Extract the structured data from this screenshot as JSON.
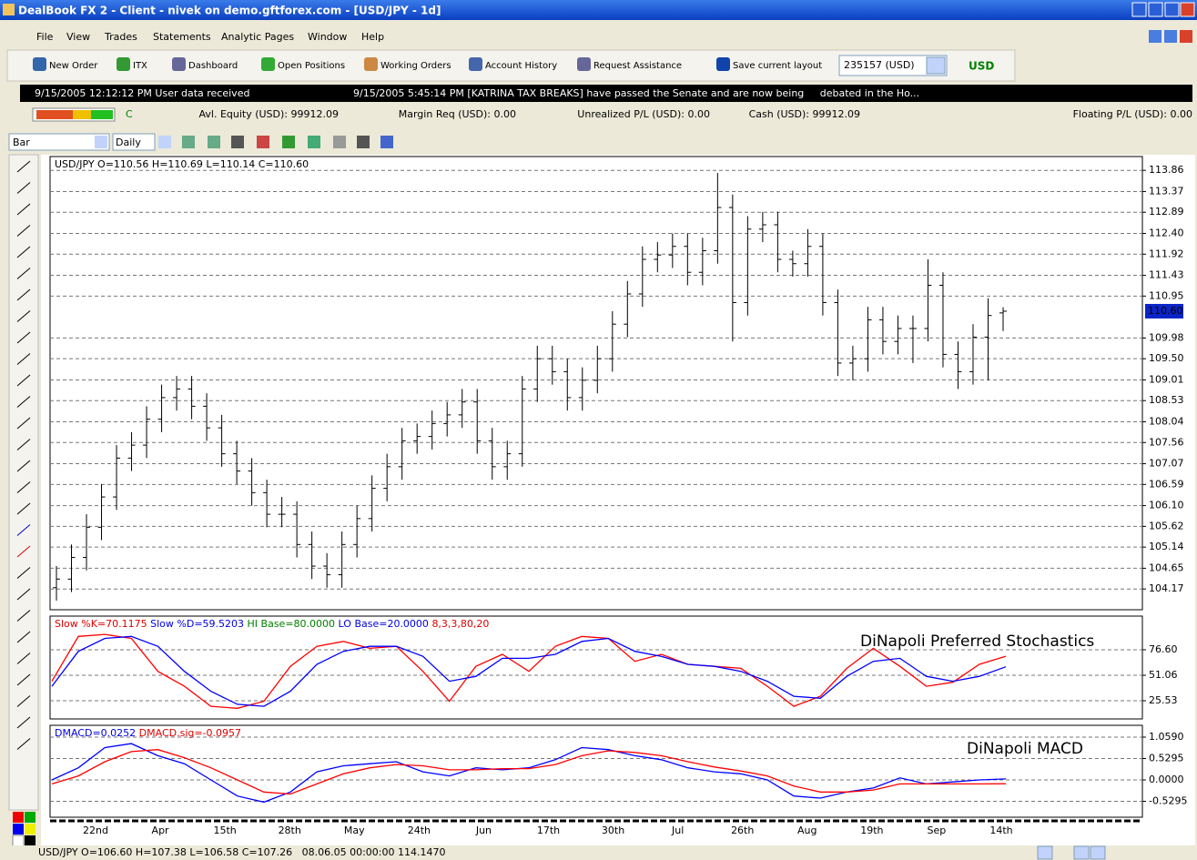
{
  "window": {
    "title": "DealBook FX 2 - Client - nivek on demo.gftforex.com - [USD/JPY - 1d]",
    "menu": [
      "File",
      "View",
      "Trades",
      "Statements",
      "Analytic Pages",
      "Window",
      "Help"
    ]
  },
  "toolbar": {
    "buttons": [
      "New Order",
      "ITX",
      "Dashboard",
      "Open Positions",
      "Working Orders",
      "Account History",
      "Request Assistance",
      "Save current layout"
    ],
    "account": "235157 (USD)",
    "currency": "USD"
  },
  "news": [
    "9/15/2005 12:12:12 PM User data received",
    "9/15/2005 5:45:14 PM [KATRINA TAX BREAKS] have passed the Senate and are now being     debated in the Ho..."
  ],
  "status": {
    "indicator": "C",
    "fields": [
      "Avl. Equity (USD): 99912.09",
      "Margin Req (USD): 0.00",
      "Unrealized P/L (USD): 0.00",
      "Cash (USD): 99912.09",
      "Floating P/L (USD): 0.00"
    ]
  },
  "chart_toolbar": {
    "style": "Bar",
    "period": "Daily"
  },
  "price_chart": {
    "type": "ohlc",
    "header": "USD/JPY O=110.56 H=110.69 L=110.14 C=110.60",
    "grid": true,
    "ylim": [
      103.69,
      114.18
    ],
    "yticks": [
      113.86,
      113.37,
      112.89,
      {
        "value": 112.4,
        "label": "112.40"
      },
      111.92,
      111.43,
      110.95,
      109.98,
      {
        "value": 109.5,
        "label": "109.50"
      },
      109.01,
      108.53,
      108.04,
      107.56,
      107.07,
      106.59,
      {
        "value": 106.1,
        "label": "106.10"
      },
      105.62,
      105.14,
      104.65,
      104.17
    ],
    "last": {
      "value": 110.6,
      "label": "110.60"
    },
    "bars": [
      [
        104.2,
        104.7,
        103.9,
        104.4
      ],
      [
        104.4,
        105.2,
        104.1,
        104.9
      ],
      [
        104.9,
        105.9,
        104.6,
        105.6
      ],
      [
        105.6,
        106.6,
        105.3,
        106.3
      ],
      [
        106.3,
        107.5,
        106.0,
        107.2
      ],
      [
        107.2,
        107.8,
        106.9,
        107.5
      ],
      [
        107.5,
        108.4,
        107.2,
        108.1
      ],
      [
        108.1,
        108.9,
        107.8,
        108.6
      ],
      [
        108.6,
        109.1,
        108.3,
        108.8
      ],
      [
        108.8,
        109.1,
        108.1,
        108.4
      ],
      [
        108.4,
        108.7,
        107.6,
        107.9
      ],
      [
        107.9,
        108.2,
        107.0,
        107.3
      ],
      [
        107.3,
        107.6,
        106.6,
        106.9
      ],
      [
        106.9,
        107.2,
        106.1,
        106.4
      ],
      [
        106.4,
        106.7,
        105.6,
        105.9
      ],
      [
        105.9,
        106.3,
        105.6,
        105.9
      ],
      [
        105.9,
        106.2,
        104.9,
        105.2
      ],
      [
        105.2,
        105.5,
        104.4,
        104.7
      ],
      [
        104.7,
        105.0,
        104.2,
        104.5
      ],
      [
        104.5,
        105.5,
        104.2,
        105.2
      ],
      [
        105.2,
        106.1,
        104.9,
        105.8
      ],
      [
        105.8,
        106.8,
        105.5,
        106.5
      ],
      [
        106.5,
        107.3,
        106.2,
        107.0
      ],
      [
        107.0,
        107.9,
        106.7,
        107.6
      ],
      [
        107.6,
        108.0,
        107.3,
        107.7
      ],
      [
        107.7,
        108.3,
        107.4,
        108.0
      ],
      [
        108.0,
        108.5,
        107.7,
        108.2
      ],
      [
        108.2,
        108.8,
        107.9,
        108.5
      ],
      [
        108.5,
        108.8,
        107.3,
        107.6
      ],
      [
        107.6,
        107.9,
        106.7,
        107.0
      ],
      [
        107.0,
        107.6,
        106.7,
        107.3
      ],
      [
        107.3,
        109.1,
        107.0,
        108.8
      ],
      [
        108.8,
        109.8,
        108.5,
        109.5
      ],
      [
        109.5,
        109.8,
        108.9,
        109.2
      ],
      [
        109.2,
        109.5,
        108.3,
        108.6
      ],
      [
        108.6,
        109.3,
        108.3,
        109.0
      ],
      [
        109.0,
        109.8,
        108.7,
        109.5
      ],
      [
        109.5,
        110.6,
        109.2,
        110.3
      ],
      [
        110.3,
        111.3,
        110.0,
        111.0
      ],
      [
        111.0,
        112.1,
        110.7,
        111.8
      ],
      [
        111.8,
        112.2,
        111.5,
        111.9
      ],
      [
        111.9,
        112.4,
        111.6,
        112.1
      ],
      [
        112.1,
        112.4,
        111.2,
        111.5
      ],
      [
        111.5,
        112.3,
        111.2,
        112.0
      ],
      [
        112.0,
        113.8,
        111.7,
        113.0
      ],
      [
        113.0,
        113.3,
        109.9,
        110.8
      ],
      [
        110.8,
        112.8,
        110.5,
        112.5
      ],
      [
        112.5,
        112.9,
        112.2,
        112.6
      ],
      [
        112.6,
        112.9,
        111.5,
        111.8
      ],
      [
        111.8,
        112.0,
        111.4,
        111.7
      ],
      [
        111.7,
        112.5,
        111.4,
        112.1
      ],
      [
        112.1,
        112.4,
        110.5,
        110.8
      ],
      [
        110.8,
        111.1,
        109.1,
        109.4
      ],
      [
        109.4,
        109.8,
        109.0,
        109.5
      ],
      [
        109.5,
        110.7,
        109.2,
        110.4
      ],
      [
        110.4,
        110.7,
        109.6,
        109.9
      ],
      [
        109.9,
        110.5,
        109.6,
        110.2
      ],
      [
        110.2,
        110.5,
        109.4,
        110.2
      ],
      [
        110.2,
        111.8,
        109.9,
        111.2
      ],
      [
        111.2,
        111.5,
        109.3,
        109.6
      ],
      [
        109.6,
        109.9,
        108.8,
        109.2
      ],
      [
        109.2,
        110.3,
        108.9,
        110.0
      ],
      [
        110.0,
        110.9,
        109.0,
        110.5
      ],
      [
        110.56,
        110.69,
        110.14,
        110.6
      ]
    ]
  },
  "stochastic": {
    "type": "line",
    "title": "DiNapoli Preferred Stochastics",
    "grid": true,
    "legend": [
      {
        "text": "Slow %K=70.1175",
        "color": "#e00000"
      },
      {
        "text": "Slow %D=59.5203",
        "color": "#0000e0"
      },
      {
        "text": "HI Base=80.0000",
        "color": "#008000"
      },
      {
        "text": "LO Base=20.0000",
        "color": "#0000e0"
      },
      {
        "text": "8,3,3,80,20",
        "color": "#e00000"
      }
    ],
    "ylim": [
      7.3,
      110.3
    ],
    "yticks": [
      {
        "value": 76.6,
        "label": "76.60"
      },
      51.06,
      25.53
    ],
    "series": [
      {
        "color": "#ff0000",
        "values": [
          45,
          90,
          92,
          88,
          55,
          40,
          20,
          18,
          25,
          60,
          80,
          85,
          78,
          80,
          55,
          25,
          60,
          72,
          55,
          80,
          90,
          88,
          65,
          72,
          62,
          60,
          58,
          40,
          20,
          30,
          58,
          78,
          60,
          40,
          44,
          62,
          70.1175
        ]
      },
      {
        "color": "#0000ff",
        "values": [
          40,
          75,
          88,
          90,
          80,
          55,
          35,
          22,
          20,
          35,
          62,
          75,
          80,
          80,
          70,
          45,
          50,
          68,
          68,
          72,
          85,
          88,
          75,
          70,
          62,
          60,
          55,
          45,
          30,
          28,
          50,
          65,
          68,
          50,
          45,
          50,
          59.5203
        ]
      }
    ]
  },
  "macd": {
    "type": "line",
    "title": "DiNapoli MACD",
    "grid": true,
    "legend": [
      {
        "text": "DMACD=0.0252",
        "color": "#0000e0"
      },
      {
        "text": "DMACD.sig=-0.0957",
        "color": "#e00000"
      }
    ],
    "ylim": [
      -0.924,
      1.352
    ],
    "yticks": [
      {
        "value": 1.059,
        "label": "1.0590"
      },
      0.5295,
      {
        "value": 0,
        "label": "0.0000"
      },
      -0.5295
    ],
    "series": [
      {
        "color": "#0000ff",
        "values": [
          0,
          0.3,
          0.8,
          0.9,
          0.6,
          0.4,
          0,
          -0.4,
          -0.55,
          -0.3,
          0.2,
          0.35,
          0.4,
          0.45,
          0.2,
          0.1,
          0.3,
          0.25,
          0.3,
          0.5,
          0.8,
          0.75,
          0.6,
          0.5,
          0.3,
          0.2,
          0.15,
          0,
          -0.4,
          -0.45,
          -0.3,
          -0.2,
          0.05,
          -0.1,
          -0.05,
          0,
          0.0252
        ]
      },
      {
        "color": "#ff0000",
        "values": [
          -0.1,
          0.1,
          0.45,
          0.7,
          0.75,
          0.55,
          0.3,
          0,
          -0.3,
          -0.35,
          -0.1,
          0.15,
          0.3,
          0.38,
          0.35,
          0.25,
          0.25,
          0.28,
          0.28,
          0.38,
          0.6,
          0.72,
          0.68,
          0.6,
          0.45,
          0.32,
          0.22,
          0.1,
          -0.15,
          -0.3,
          -0.3,
          -0.25,
          -0.1,
          -0.1,
          -0.1,
          -0.1,
          -0.0957
        ]
      }
    ]
  },
  "x_labels": [
    "22nd",
    "Apr",
    "15th",
    "28th",
    "May",
    "24th",
    "Jun",
    "17th",
    "30th",
    "Jul",
    "26th",
    "Aug",
    "19th",
    "Sep",
    "14th"
  ],
  "footer": "USD/JPY O=106.60 H=107.38 L=106.58 C=107.26   08.06.05 00:00:00 114.1470"
}
